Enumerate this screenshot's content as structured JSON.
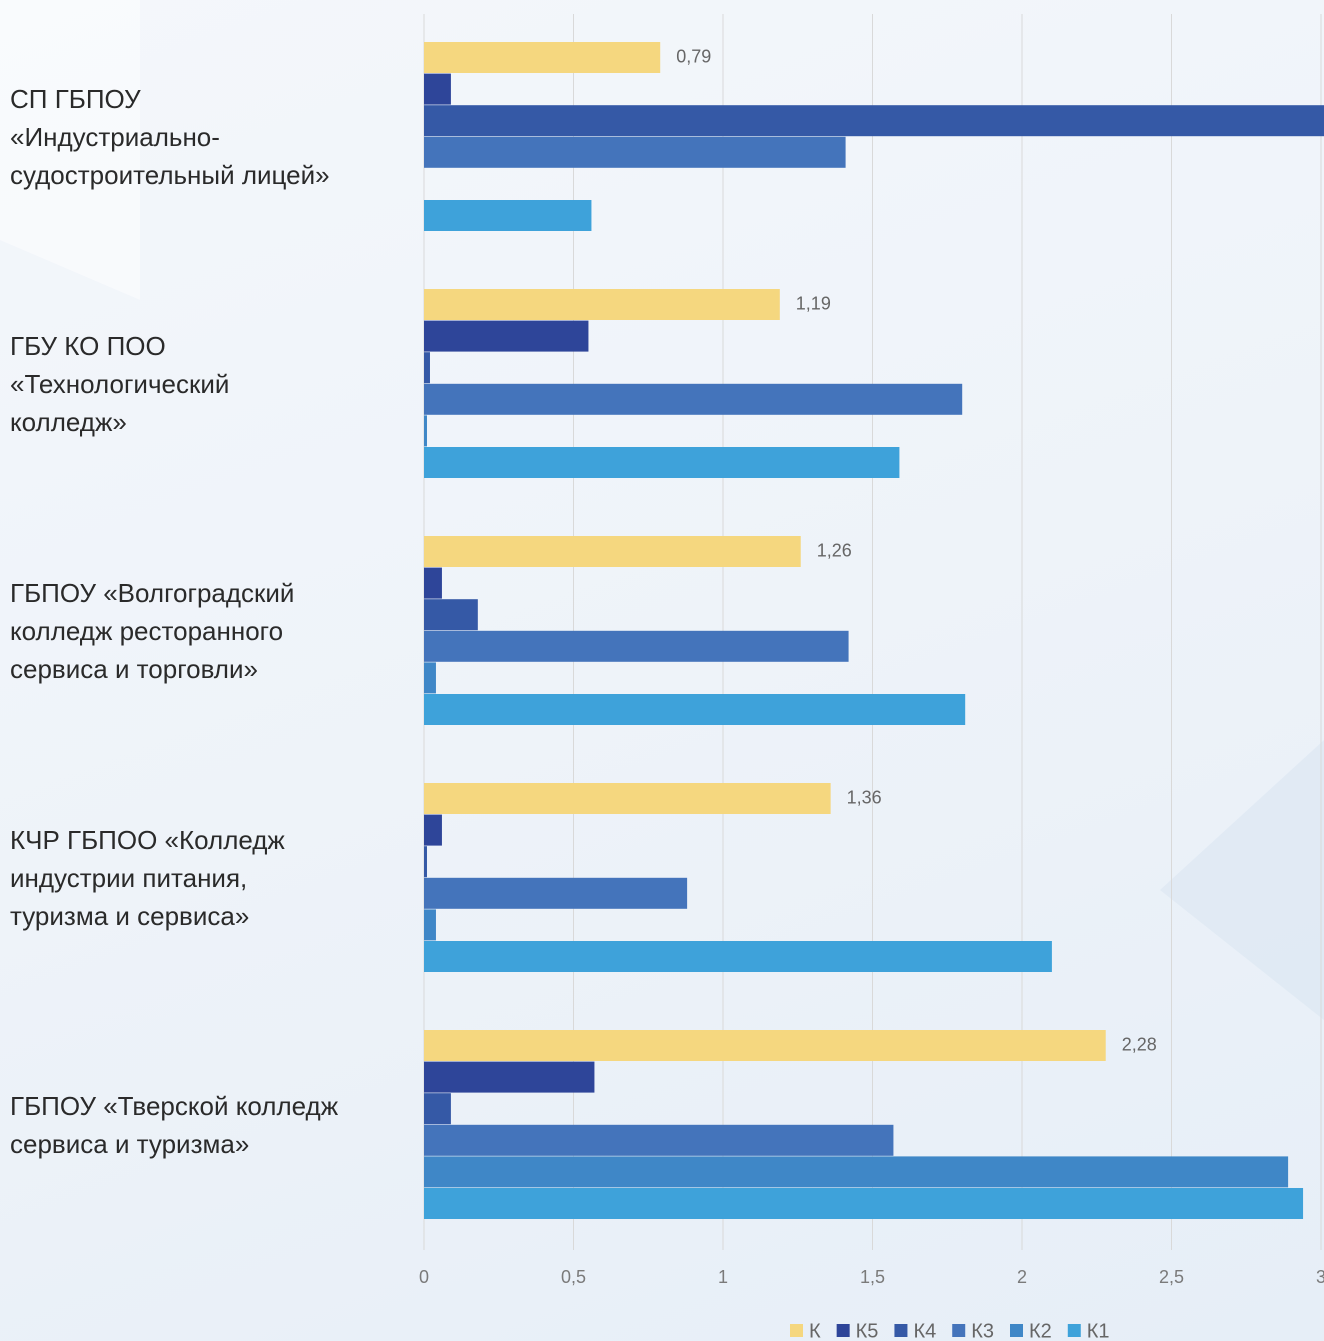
{
  "chart_data": {
    "type": "bar",
    "orientation": "horizontal",
    "categories": [
      "СП ГБПОУ\n«Индустриально-\nсудостроительный лицей»",
      "ГБУ КО ПОО\n«Технологический\nколледж»",
      "ГБПОУ «Волгоградский\nколледж ресторанного\nсервиса и торговли»",
      "КЧР ГБПОО «Колледж\nиндустрии питания,\nтуризма и сервиса»",
      "ГБПОУ «Тверской колледж\nсервиса и туризма»"
    ],
    "series": [
      {
        "name": "К",
        "color": "#f5d77f",
        "values": [
          0.79,
          1.19,
          1.26,
          1.36,
          2.28
        ],
        "value_labels": [
          "0,79",
          "1,19",
          "1,26",
          "1,36",
          "2,28"
        ]
      },
      {
        "name": "К5",
        "color": "#2e4599",
        "values": [
          0.09,
          0.55,
          0.06,
          0.06,
          0.57
        ]
      },
      {
        "name": "К4",
        "color": "#3559a6",
        "values": [
          3.05,
          0.02,
          0.18,
          0.01,
          0.09
        ]
      },
      {
        "name": "К3",
        "color": "#4474bb",
        "values": [
          1.41,
          1.8,
          1.42,
          0.88,
          1.57
        ]
      },
      {
        "name": "К2",
        "color": "#3f87c7",
        "values": [
          0,
          0.01,
          0.04,
          0.04,
          2.89
        ]
      },
      {
        "name": "К1",
        "color": "#3ea2da",
        "values": [
          0.56,
          1.59,
          1.81,
          2.1,
          2.94
        ]
      }
    ],
    "xlim": [
      0,
      3
    ],
    "xticks": [
      0,
      {
        "value": 0.5,
        "label": "0,5"
      },
      1,
      {
        "value": 1.5,
        "label": "1,5"
      },
      2,
      {
        "value": 2.5,
        "label": "2,5"
      },
      3
    ],
    "grid": true,
    "legend": "bottom"
  }
}
